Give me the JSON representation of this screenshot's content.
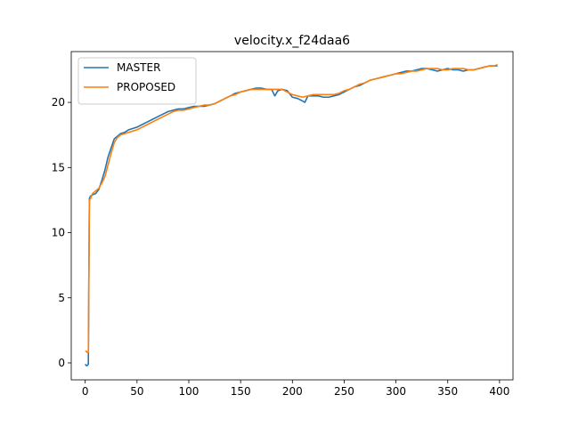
{
  "chart_data": {
    "type": "line",
    "title": "velocity.x_f24daa6",
    "xlabel": "",
    "ylabel": "",
    "xlim": [
      -13.5,
      413
    ],
    "ylim": [
      -1.3,
      23.9
    ],
    "xticks": [
      0,
      50,
      100,
      150,
      200,
      250,
      300,
      350,
      400
    ],
    "yticks": [
      0,
      5,
      10,
      15,
      20
    ],
    "grid": false,
    "legend": "upper-left",
    "series": [
      {
        "name": "MASTER",
        "color": "#1f77b4",
        "x": [
          0,
          1,
          2,
          3,
          4,
          5,
          7,
          10,
          13,
          16,
          19,
          22,
          25,
          28,
          31,
          34,
          38,
          42,
          46,
          50,
          55,
          60,
          65,
          70,
          75,
          80,
          85,
          90,
          95,
          100,
          105,
          110,
          115,
          120,
          125,
          130,
          135,
          140,
          145,
          150,
          155,
          160,
          165,
          170,
          175,
          180,
          183,
          186,
          190,
          195,
          200,
          205,
          210,
          212,
          215,
          220,
          225,
          230,
          235,
          240,
          245,
          250,
          255,
          260,
          265,
          270,
          275,
          280,
          285,
          290,
          295,
          300,
          305,
          310,
          315,
          320,
          325,
          330,
          335,
          340,
          345,
          350,
          355,
          360,
          365,
          370,
          375,
          380,
          385,
          390,
          395,
          398
        ],
        "values": [
          -0.1,
          -0.2,
          -0.2,
          -0.1,
          12.6,
          12.8,
          12.9,
          13.0,
          13.3,
          14.0,
          14.8,
          15.8,
          16.5,
          17.2,
          17.4,
          17.6,
          17.7,
          17.9,
          18.0,
          18.1,
          18.3,
          18.5,
          18.7,
          18.9,
          19.1,
          19.3,
          19.4,
          19.5,
          19.5,
          19.6,
          19.7,
          19.7,
          19.7,
          19.8,
          19.9,
          20.1,
          20.3,
          20.5,
          20.7,
          20.8,
          20.9,
          21.0,
          21.1,
          21.1,
          21.0,
          21.0,
          20.5,
          20.9,
          21.0,
          20.9,
          20.4,
          20.3,
          20.1,
          20.0,
          20.5,
          20.5,
          20.5,
          20.4,
          20.4,
          20.5,
          20.6,
          20.8,
          21.0,
          21.2,
          21.3,
          21.5,
          21.7,
          21.8,
          21.9,
          22.0,
          22.1,
          22.2,
          22.3,
          22.4,
          22.4,
          22.5,
          22.6,
          22.6,
          22.5,
          22.4,
          22.5,
          22.6,
          22.5,
          22.5,
          22.4,
          22.5,
          22.5,
          22.6,
          22.7,
          22.8,
          22.8,
          22.8
        ]
      },
      {
        "name": "PROPOSED",
        "color": "#ff7f0e",
        "x": [
          0,
          1,
          2,
          3,
          4,
          5,
          7,
          10,
          13,
          16,
          19,
          22,
          25,
          28,
          31,
          34,
          38,
          42,
          46,
          50,
          55,
          60,
          65,
          70,
          75,
          80,
          85,
          90,
          95,
          100,
          105,
          110,
          115,
          120,
          125,
          130,
          135,
          140,
          145,
          150,
          155,
          160,
          165,
          170,
          175,
          180,
          185,
          190,
          195,
          200,
          205,
          210,
          215,
          220,
          225,
          230,
          235,
          240,
          245,
          250,
          255,
          260,
          265,
          270,
          275,
          280,
          285,
          290,
          295,
          300,
          305,
          310,
          315,
          320,
          325,
          330,
          335,
          340,
          345,
          350,
          355,
          360,
          365,
          370,
          375,
          380,
          385,
          390,
          395,
          398
        ],
        "values": [
          0.9,
          0.9,
          0.8,
          0.8,
          12.5,
          12.6,
          13.0,
          13.2,
          13.4,
          13.8,
          14.3,
          15.2,
          16.1,
          16.9,
          17.3,
          17.5,
          17.6,
          17.7,
          17.8,
          17.9,
          18.1,
          18.3,
          18.5,
          18.7,
          18.9,
          19.1,
          19.3,
          19.4,
          19.4,
          19.5,
          19.6,
          19.7,
          19.8,
          19.8,
          19.9,
          20.1,
          20.3,
          20.5,
          20.6,
          20.8,
          20.9,
          21.0,
          21.0,
          21.0,
          21.0,
          21.0,
          21.0,
          21.0,
          20.8,
          20.6,
          20.5,
          20.4,
          20.5,
          20.6,
          20.6,
          20.6,
          20.6,
          20.6,
          20.7,
          20.9,
          21.0,
          21.2,
          21.4,
          21.5,
          21.7,
          21.8,
          21.9,
          22.0,
          22.1,
          22.2,
          22.2,
          22.3,
          22.4,
          22.4,
          22.5,
          22.6,
          22.6,
          22.6,
          22.5,
          22.5,
          22.6,
          22.6,
          22.6,
          22.5,
          22.5,
          22.6,
          22.7,
          22.8,
          22.8,
          22.9
        ]
      }
    ]
  }
}
